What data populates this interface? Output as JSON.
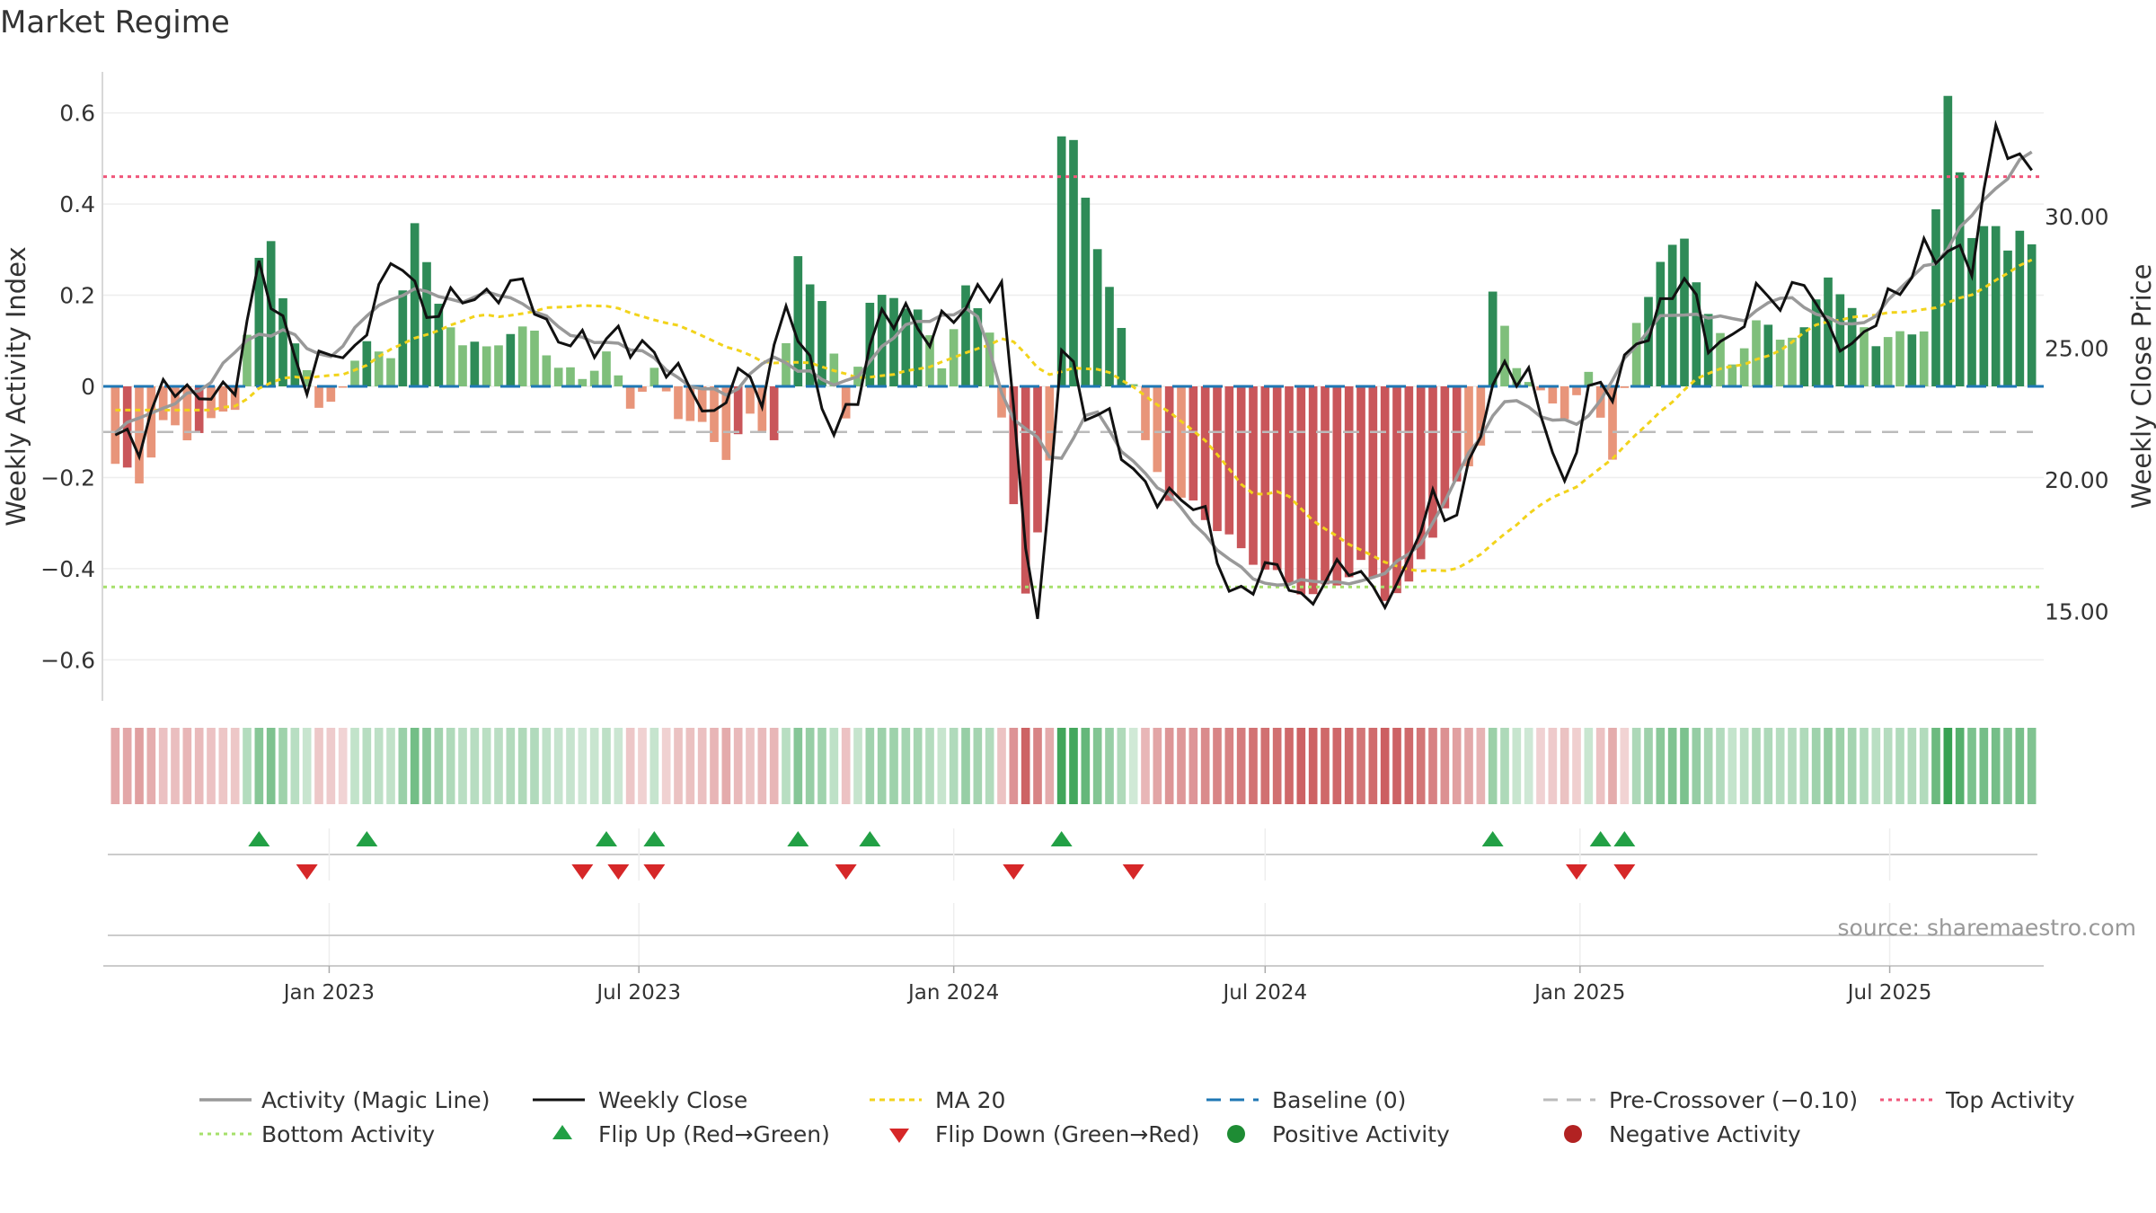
{
  "title": "Market Regime",
  "source_note": "source: sharemaestro.com",
  "colors": {
    "strong_green": "#2e8b57",
    "light_green": "#7fbf7b",
    "strong_red": "#c9565a",
    "light_red": "#e8957a",
    "magic_line": "#999999",
    "weekly_close": "#111111",
    "ma20": "#f2d31b",
    "baseline": "#1f77b4",
    "pre_crossover": "#bbbbbb",
    "top_activity": "#f0567a",
    "bottom_activity": "#a6e06b",
    "flip_up": "#22a045",
    "flip_down": "#d62728"
  },
  "chart_data": {
    "type": "bar",
    "y_left_label": "Weekly Activity Index",
    "y_right_label": "Weekly Close Price",
    "y_left_ticks": [
      "0.6",
      "0.4",
      "0.2",
      "0",
      "−0.2",
      "−0.4",
      "−0.6"
    ],
    "y_left_tick_values": [
      0.6,
      0.4,
      0.2,
      0,
      -0.2,
      -0.4,
      -0.6
    ],
    "y_left_range": [
      -0.69,
      0.69
    ],
    "y_right_ticks": [
      "30.00",
      "25.00",
      "20.00",
      "15.00"
    ],
    "y_right_tick_values": [
      30,
      25,
      20,
      15
    ],
    "y_right_range": [
      11.6,
      35.5
    ],
    "x_ticks": [
      "Jan 2023",
      "Jul 2023",
      "Jan 2024",
      "Jul 2024",
      "Jan 2025",
      "Jul 2025"
    ],
    "x_tick_dates": [
      "2023-01-01",
      "2023-07-01",
      "2024-01-01",
      "2024-07-01",
      "2025-01-01",
      "2025-07-01"
    ],
    "x_range": [
      "2022-08-22",
      "2025-09-29"
    ],
    "top_activity": 0.46,
    "bottom_activity": -0.44,
    "pre_crossover": -0.1,
    "baseline": 0,
    "grid": true,
    "legend_position": "bottom",
    "legend": [
      "Activity (Magic Line)",
      "Weekly Close",
      "MA 20",
      "Baseline (0)",
      "Pre-Crossover (−0.10)",
      "Top Activity",
      "Bottom Activity",
      "Flip Up (Red→Green)",
      "Flip Down (Green→Red)",
      "Positive Activity",
      "Negative Activity"
    ],
    "activity_weekly_key": [
      [
        "2022-08-29",
        -0.17
      ],
      [
        "2022-09-12",
        -0.21
      ],
      [
        "2022-09-26",
        -0.08
      ],
      [
        "2022-10-10",
        -0.11
      ],
      [
        "2022-10-24",
        -0.08
      ],
      [
        "2022-11-07",
        -0.04
      ],
      [
        "2022-11-21",
        0.27
      ],
      [
        "2022-11-28",
        0.32
      ],
      [
        "2022-12-12",
        0.09
      ],
      [
        "2022-12-26",
        -0.04
      ],
      [
        "2023-01-09",
        -0.01
      ],
      [
        "2023-01-23",
        0.11
      ],
      [
        "2023-02-06",
        0.05
      ],
      [
        "2023-02-20",
        0.37
      ],
      [
        "2023-03-06",
        0.17
      ],
      [
        "2023-03-20",
        0.1
      ],
      [
        "2023-04-03",
        0.08
      ],
      [
        "2023-04-17",
        0.12
      ],
      [
        "2023-05-01",
        0.12
      ],
      [
        "2023-05-15",
        0.04
      ],
      [
        "2023-05-29",
        0.02
      ],
      [
        "2023-06-12",
        0.07
      ],
      [
        "2023-06-26",
        -0.04
      ],
      [
        "2023-07-10",
        0.03
      ],
      [
        "2023-07-24",
        -0.06
      ],
      [
        "2023-08-07",
        -0.09
      ],
      [
        "2023-08-21",
        -0.15
      ],
      [
        "2023-09-04",
        -0.07
      ],
      [
        "2023-09-18",
        -0.11
      ],
      [
        "2023-10-02",
        0.28
      ],
      [
        "2023-10-16",
        0.19
      ],
      [
        "2023-10-30",
        -0.07
      ],
      [
        "2023-11-13",
        0.18
      ],
      [
        "2023-11-27",
        0.2
      ],
      [
        "2023-12-11",
        0.16
      ],
      [
        "2023-12-25",
        0.05
      ],
      [
        "2024-01-08",
        0.21
      ],
      [
        "2024-01-22",
        0.13
      ],
      [
        "2024-02-05",
        -0.27
      ],
      [
        "2024-02-12",
        -0.45
      ],
      [
        "2024-02-26",
        -0.17
      ],
      [
        "2024-03-04",
        0.54
      ],
      [
        "2024-03-11",
        0.55
      ],
      [
        "2024-03-25",
        0.29
      ],
      [
        "2024-04-08",
        0.14
      ],
      [
        "2024-04-22",
        -0.13
      ],
      [
        "2024-05-06",
        -0.24
      ],
      [
        "2024-05-20",
        -0.26
      ],
      [
        "2024-06-03",
        -0.31
      ],
      [
        "2024-06-17",
        -0.36
      ],
      [
        "2024-07-01",
        -0.4
      ],
      [
        "2024-07-15",
        -0.43
      ],
      [
        "2024-07-29",
        -0.46
      ],
      [
        "2024-08-12",
        -0.43
      ],
      [
        "2024-08-26",
        -0.39
      ],
      [
        "2024-09-09",
        -0.46
      ],
      [
        "2024-09-23",
        -0.44
      ],
      [
        "2024-10-07",
        -0.32
      ],
      [
        "2024-10-21",
        -0.22
      ],
      [
        "2024-11-04",
        -0.12
      ],
      [
        "2024-11-11",
        0.2
      ],
      [
        "2024-11-25",
        0.05
      ],
      [
        "2024-12-09",
        -0.02
      ],
      [
        "2024-12-23",
        -0.06
      ],
      [
        "2025-01-06",
        0.02
      ],
      [
        "2025-01-20",
        -0.15
      ],
      [
        "2025-02-03",
        0.13
      ],
      [
        "2025-02-17",
        0.28
      ],
      [
        "2025-03-03",
        0.32
      ],
      [
        "2025-03-17",
        0.16
      ],
      [
        "2025-03-31",
        0.05
      ],
      [
        "2025-04-14",
        0.14
      ],
      [
        "2025-04-28",
        0.11
      ],
      [
        "2025-05-12",
        0.12
      ],
      [
        "2025-05-26",
        0.25
      ],
      [
        "2025-06-09",
        0.16
      ],
      [
        "2025-06-23",
        0.1
      ],
      [
        "2025-07-07",
        0.11
      ],
      [
        "2025-07-21",
        0.13
      ],
      [
        "2025-08-04",
        0.63
      ],
      [
        "2025-08-18",
        0.33
      ],
      [
        "2025-09-01",
        0.35
      ],
      [
        "2025-09-08",
        0.31
      ],
      [
        "2025-09-15",
        0.34
      ],
      [
        "2025-09-22",
        0.3
      ]
    ],
    "weekly_close_key": [
      [
        "2022-08-29",
        21.4
      ],
      [
        "2022-09-12",
        21.5
      ],
      [
        "2022-09-26",
        23.8
      ],
      [
        "2022-10-10",
        22.9
      ],
      [
        "2022-10-24",
        23.5
      ],
      [
        "2022-11-07",
        23.6
      ],
      [
        "2022-11-21",
        27.8
      ],
      [
        "2022-12-05",
        26.2
      ],
      [
        "2022-12-19",
        23.5
      ],
      [
        "2023-01-02",
        24.8
      ],
      [
        "2023-01-16",
        25.0
      ],
      [
        "2023-01-30",
        27.1
      ],
      [
        "2023-02-13",
        28.3
      ],
      [
        "2023-02-27",
        26.5
      ],
      [
        "2023-03-13",
        26.6
      ],
      [
        "2023-03-27",
        26.9
      ],
      [
        "2023-04-10",
        27.4
      ],
      [
        "2023-04-24",
        27.2
      ],
      [
        "2023-05-08",
        25.8
      ],
      [
        "2023-05-22",
        25.5
      ],
      [
        "2023-06-05",
        24.7
      ],
      [
        "2023-06-19",
        25.7
      ],
      [
        "2023-07-03",
        25.1
      ],
      [
        "2023-07-17",
        24.0
      ],
      [
        "2023-07-31",
        23.9
      ],
      [
        "2023-08-14",
        22.2
      ],
      [
        "2023-08-28",
        23.9
      ],
      [
        "2023-09-11",
        23.5
      ],
      [
        "2023-09-25",
        26.5
      ],
      [
        "2023-10-09",
        24.1
      ],
      [
        "2023-10-23",
        22.1
      ],
      [
        "2023-11-06",
        23.1
      ],
      [
        "2023-11-20",
        26.2
      ],
      [
        "2023-12-04",
        26.6
      ],
      [
        "2023-12-18",
        25.1
      ],
      [
        "2024-01-01",
        26.3
      ],
      [
        "2024-01-15",
        27.3
      ],
      [
        "2024-01-29",
        27.0
      ],
      [
        "2024-02-12",
        17.9
      ],
      [
        "2024-02-19",
        14.6
      ],
      [
        "2024-03-04",
        25.0
      ],
      [
        "2024-03-18",
        22.5
      ],
      [
        "2024-04-01",
        22.7
      ],
      [
        "2024-04-15",
        19.9
      ],
      [
        "2024-04-29",
        19.3
      ],
      [
        "2024-05-13",
        19.7
      ],
      [
        "2024-05-27",
        18.3
      ],
      [
        "2024-06-10",
        15.7
      ],
      [
        "2024-06-24",
        16.3
      ],
      [
        "2024-07-08",
        16.5
      ],
      [
        "2024-07-22",
        15.4
      ],
      [
        "2024-08-05",
        16.3
      ],
      [
        "2024-08-19",
        16.5
      ],
      [
        "2024-09-02",
        16.0
      ],
      [
        "2024-09-16",
        15.7
      ],
      [
        "2024-10-07",
        19.2
      ],
      [
        "2024-10-21",
        18.9
      ],
      [
        "2024-11-04",
        21.8
      ],
      [
        "2024-11-18",
        24.5
      ],
      [
        "2024-12-02",
        24.0
      ],
      [
        "2024-12-23",
        19.4
      ],
      [
        "2025-01-06",
        23.8
      ],
      [
        "2025-01-20",
        23.2
      ],
      [
        "2025-02-03",
        25.1
      ],
      [
        "2025-02-17",
        26.7
      ],
      [
        "2025-03-03",
        27.5
      ],
      [
        "2025-03-17",
        25.3
      ],
      [
        "2025-03-31",
        25.5
      ],
      [
        "2025-04-14",
        26.8
      ],
      [
        "2025-04-28",
        26.9
      ],
      [
        "2025-05-12",
        27.8
      ],
      [
        "2025-05-26",
        25.3
      ],
      [
        "2025-06-09",
        25.2
      ],
      [
        "2025-06-23",
        26.3
      ],
      [
        "2025-07-07",
        26.9
      ],
      [
        "2025-07-21",
        29.0
      ],
      [
        "2025-08-04",
        28.6
      ],
      [
        "2025-08-18",
        28.0
      ],
      [
        "2025-09-01",
        33.7
      ],
      [
        "2025-09-15",
        31.8
      ],
      [
        "2025-09-29",
        31.5
      ]
    ],
    "flip_up_dates": [
      "2022-11-21",
      "2023-01-23",
      "2023-06-12",
      "2023-07-10",
      "2023-10-02",
      "2023-11-13",
      "2024-03-04",
      "2024-11-11",
      "2025-01-13",
      "2025-01-27"
    ],
    "flip_down_dates": [
      "2022-12-19",
      "2023-05-29",
      "2023-06-19",
      "2023-07-10",
      "2023-10-30",
      "2024-02-05",
      "2024-04-15",
      "2024-12-30",
      "2025-01-27"
    ]
  }
}
